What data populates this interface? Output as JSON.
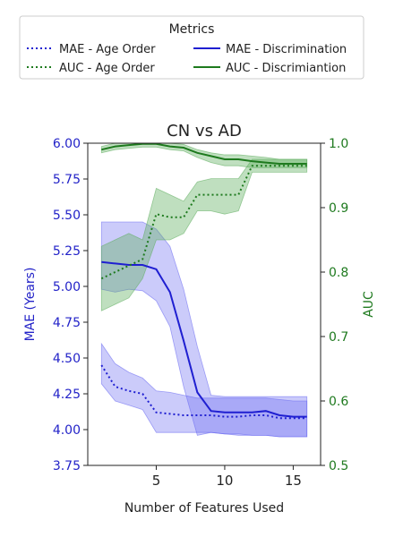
{
  "chart_data": {
    "type": "line",
    "title": "CN vs AD",
    "xlabel": "Number of Features Used",
    "ylabel_left": "MAE (Years)",
    "ylabel_right": "AUC",
    "xlim": [
      0,
      17
    ],
    "ylim_left": [
      3.75,
      6.0
    ],
    "ylim_right": [
      0.5,
      1.0
    ],
    "x_ticks": [
      5,
      10,
      15
    ],
    "y_ticks_left": [
      "3.75",
      "4.00",
      "4.25",
      "4.50",
      "4.75",
      "5.00",
      "5.25",
      "5.50",
      "5.75",
      "6.00"
    ],
    "y_ticks_right": [
      "0.5",
      "0.6",
      "0.7",
      "0.8",
      "0.9",
      "1.0"
    ],
    "grid": false,
    "legend": {
      "title": "Metrics",
      "placement": "top",
      "entries": [
        "MAE - Age Order",
        "MAE - Discrimination",
        "AUC - Age Order",
        "AUC - Discrimiantion"
      ]
    },
    "colors": {
      "mae": "#1f1fd1",
      "mae_band": "#6b6bf2",
      "auc": "#1e7a1e",
      "auc_band": "#5fae5f",
      "left_axis": "#2323c8",
      "right_axis": "#1f7a1f"
    },
    "x": [
      1,
      2,
      3,
      4,
      5,
      6,
      7,
      8,
      9,
      10,
      11,
      12,
      13,
      14,
      15,
      16
    ],
    "series": [
      {
        "name": "MAE - Age Order",
        "axis": "left",
        "style": "dotted",
        "values": [
          4.45,
          4.3,
          4.27,
          4.25,
          4.12,
          4.11,
          4.1,
          4.1,
          4.1,
          4.09,
          4.09,
          4.1,
          4.1,
          4.08,
          4.08,
          4.08
        ],
        "lower": [
          4.32,
          4.2,
          4.17,
          4.14,
          3.98,
          3.98,
          3.98,
          3.98,
          3.98,
          3.97,
          3.96,
          3.96,
          3.96,
          3.95,
          3.95,
          3.95
        ],
        "upper": [
          4.6,
          4.46,
          4.4,
          4.36,
          4.27,
          4.26,
          4.24,
          4.22,
          4.22,
          4.22,
          4.22,
          4.22,
          4.22,
          4.21,
          4.2,
          4.2
        ]
      },
      {
        "name": "MAE - Discrimination",
        "axis": "left",
        "style": "solid",
        "values": [
          5.17,
          5.16,
          5.15,
          5.15,
          5.12,
          4.96,
          4.62,
          4.26,
          4.13,
          4.12,
          4.12,
          4.12,
          4.13,
          4.1,
          4.09,
          4.09
        ],
        "lower": [
          4.98,
          4.96,
          4.98,
          4.97,
          4.9,
          4.72,
          4.3,
          3.96,
          3.98,
          3.97,
          3.97,
          3.96,
          3.96,
          3.95,
          3.95,
          3.95
        ],
        "upper": [
          5.45,
          5.45,
          5.45,
          5.45,
          5.4,
          5.28,
          4.98,
          4.58,
          4.24,
          4.23,
          4.23,
          4.23,
          4.23,
          4.23,
          4.23,
          4.23
        ]
      },
      {
        "name": "AUC - Age Order",
        "axis": "right",
        "style": "dotted",
        "values": [
          0.79,
          0.8,
          0.81,
          0.82,
          0.89,
          0.885,
          0.885,
          0.92,
          0.92,
          0.92,
          0.92,
          0.965,
          0.965,
          0.965,
          0.965,
          0.965
        ],
        "lower": [
          0.74,
          0.75,
          0.76,
          0.79,
          0.85,
          0.85,
          0.86,
          0.895,
          0.895,
          0.89,
          0.895,
          0.955,
          0.955,
          0.955,
          0.955,
          0.955
        ],
        "upper": [
          0.84,
          0.85,
          0.86,
          0.85,
          0.93,
          0.92,
          0.91,
          0.94,
          0.945,
          0.945,
          0.945,
          0.975,
          0.975,
          0.975,
          0.975,
          0.975
        ]
      },
      {
        "name": "AUC - Discrimiantion",
        "axis": "right",
        "style": "solid",
        "values": [
          0.99,
          0.995,
          0.997,
          0.999,
          0.999,
          0.995,
          0.993,
          0.985,
          0.98,
          0.975,
          0.975,
          0.972,
          0.97,
          0.968,
          0.968,
          0.968
        ],
        "lower": [
          0.985,
          0.99,
          0.992,
          0.994,
          0.994,
          0.99,
          0.988,
          0.978,
          0.97,
          0.965,
          0.965,
          0.962,
          0.962,
          0.962,
          0.962,
          0.962
        ],
        "upper": [
          0.995,
          1.0,
          1.0,
          1.0,
          1.0,
          1.0,
          0.998,
          0.99,
          0.985,
          0.982,
          0.982,
          0.98,
          0.978,
          0.975,
          0.975,
          0.975
        ]
      }
    ]
  }
}
